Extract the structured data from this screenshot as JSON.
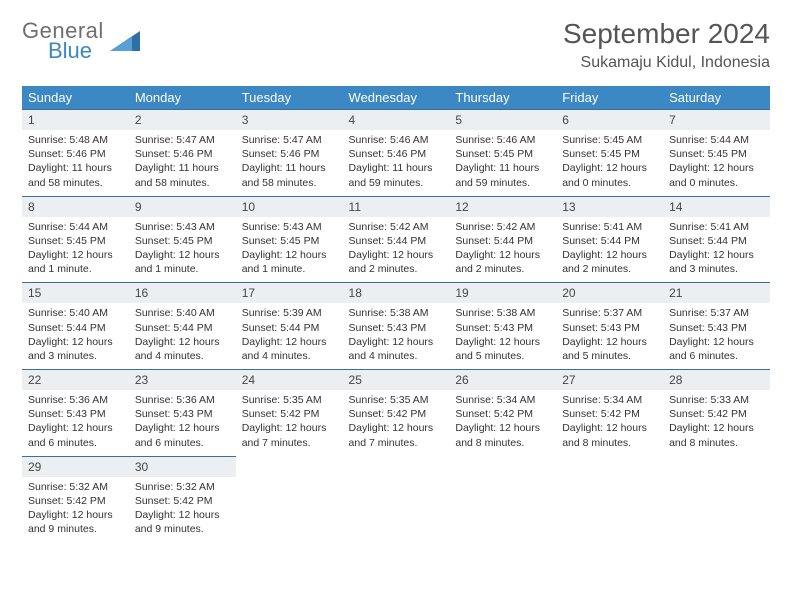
{
  "brand": {
    "part1": "General",
    "part2": "Blue"
  },
  "title": "September 2024",
  "location": "Sukamaju Kidul, Indonesia",
  "colors": {
    "header_bg": "#3b88c4",
    "header_text": "#ffffff",
    "daynum_bg": "#eceff1",
    "row_border": "#3b6f99",
    "body_text": "#333333",
    "brand_gray": "#6f6f6f",
    "brand_blue": "#3b88c4"
  },
  "weekdays": [
    "Sunday",
    "Monday",
    "Tuesday",
    "Wednesday",
    "Thursday",
    "Friday",
    "Saturday"
  ],
  "days": [
    {
      "n": "1",
      "sr": "5:48 AM",
      "ss": "5:46 PM",
      "dl": "11 hours and 58 minutes."
    },
    {
      "n": "2",
      "sr": "5:47 AM",
      "ss": "5:46 PM",
      "dl": "11 hours and 58 minutes."
    },
    {
      "n": "3",
      "sr": "5:47 AM",
      "ss": "5:46 PM",
      "dl": "11 hours and 58 minutes."
    },
    {
      "n": "4",
      "sr": "5:46 AM",
      "ss": "5:46 PM",
      "dl": "11 hours and 59 minutes."
    },
    {
      "n": "5",
      "sr": "5:46 AM",
      "ss": "5:45 PM",
      "dl": "11 hours and 59 minutes."
    },
    {
      "n": "6",
      "sr": "5:45 AM",
      "ss": "5:45 PM",
      "dl": "12 hours and 0 minutes."
    },
    {
      "n": "7",
      "sr": "5:44 AM",
      "ss": "5:45 PM",
      "dl": "12 hours and 0 minutes."
    },
    {
      "n": "8",
      "sr": "5:44 AM",
      "ss": "5:45 PM",
      "dl": "12 hours and 1 minute."
    },
    {
      "n": "9",
      "sr": "5:43 AM",
      "ss": "5:45 PM",
      "dl": "12 hours and 1 minute."
    },
    {
      "n": "10",
      "sr": "5:43 AM",
      "ss": "5:45 PM",
      "dl": "12 hours and 1 minute."
    },
    {
      "n": "11",
      "sr": "5:42 AM",
      "ss": "5:44 PM",
      "dl": "12 hours and 2 minutes."
    },
    {
      "n": "12",
      "sr": "5:42 AM",
      "ss": "5:44 PM",
      "dl": "12 hours and 2 minutes."
    },
    {
      "n": "13",
      "sr": "5:41 AM",
      "ss": "5:44 PM",
      "dl": "12 hours and 2 minutes."
    },
    {
      "n": "14",
      "sr": "5:41 AM",
      "ss": "5:44 PM",
      "dl": "12 hours and 3 minutes."
    },
    {
      "n": "15",
      "sr": "5:40 AM",
      "ss": "5:44 PM",
      "dl": "12 hours and 3 minutes."
    },
    {
      "n": "16",
      "sr": "5:40 AM",
      "ss": "5:44 PM",
      "dl": "12 hours and 4 minutes."
    },
    {
      "n": "17",
      "sr": "5:39 AM",
      "ss": "5:44 PM",
      "dl": "12 hours and 4 minutes."
    },
    {
      "n": "18",
      "sr": "5:38 AM",
      "ss": "5:43 PM",
      "dl": "12 hours and 4 minutes."
    },
    {
      "n": "19",
      "sr": "5:38 AM",
      "ss": "5:43 PM",
      "dl": "12 hours and 5 minutes."
    },
    {
      "n": "20",
      "sr": "5:37 AM",
      "ss": "5:43 PM",
      "dl": "12 hours and 5 minutes."
    },
    {
      "n": "21",
      "sr": "5:37 AM",
      "ss": "5:43 PM",
      "dl": "12 hours and 6 minutes."
    },
    {
      "n": "22",
      "sr": "5:36 AM",
      "ss": "5:43 PM",
      "dl": "12 hours and 6 minutes."
    },
    {
      "n": "23",
      "sr": "5:36 AM",
      "ss": "5:43 PM",
      "dl": "12 hours and 6 minutes."
    },
    {
      "n": "24",
      "sr": "5:35 AM",
      "ss": "5:42 PM",
      "dl": "12 hours and 7 minutes."
    },
    {
      "n": "25",
      "sr": "5:35 AM",
      "ss": "5:42 PM",
      "dl": "12 hours and 7 minutes."
    },
    {
      "n": "26",
      "sr": "5:34 AM",
      "ss": "5:42 PM",
      "dl": "12 hours and 8 minutes."
    },
    {
      "n": "27",
      "sr": "5:34 AM",
      "ss": "5:42 PM",
      "dl": "12 hours and 8 minutes."
    },
    {
      "n": "28",
      "sr": "5:33 AM",
      "ss": "5:42 PM",
      "dl": "12 hours and 8 minutes."
    },
    {
      "n": "29",
      "sr": "5:32 AM",
      "ss": "5:42 PM",
      "dl": "12 hours and 9 minutes."
    },
    {
      "n": "30",
      "sr": "5:32 AM",
      "ss": "5:42 PM",
      "dl": "12 hours and 9 minutes."
    }
  ],
  "labels": {
    "sunrise": "Sunrise: ",
    "sunset": "Sunset: ",
    "daylight": "Daylight: "
  },
  "layout": {
    "start_offset": 0,
    "total_cells": 35
  }
}
